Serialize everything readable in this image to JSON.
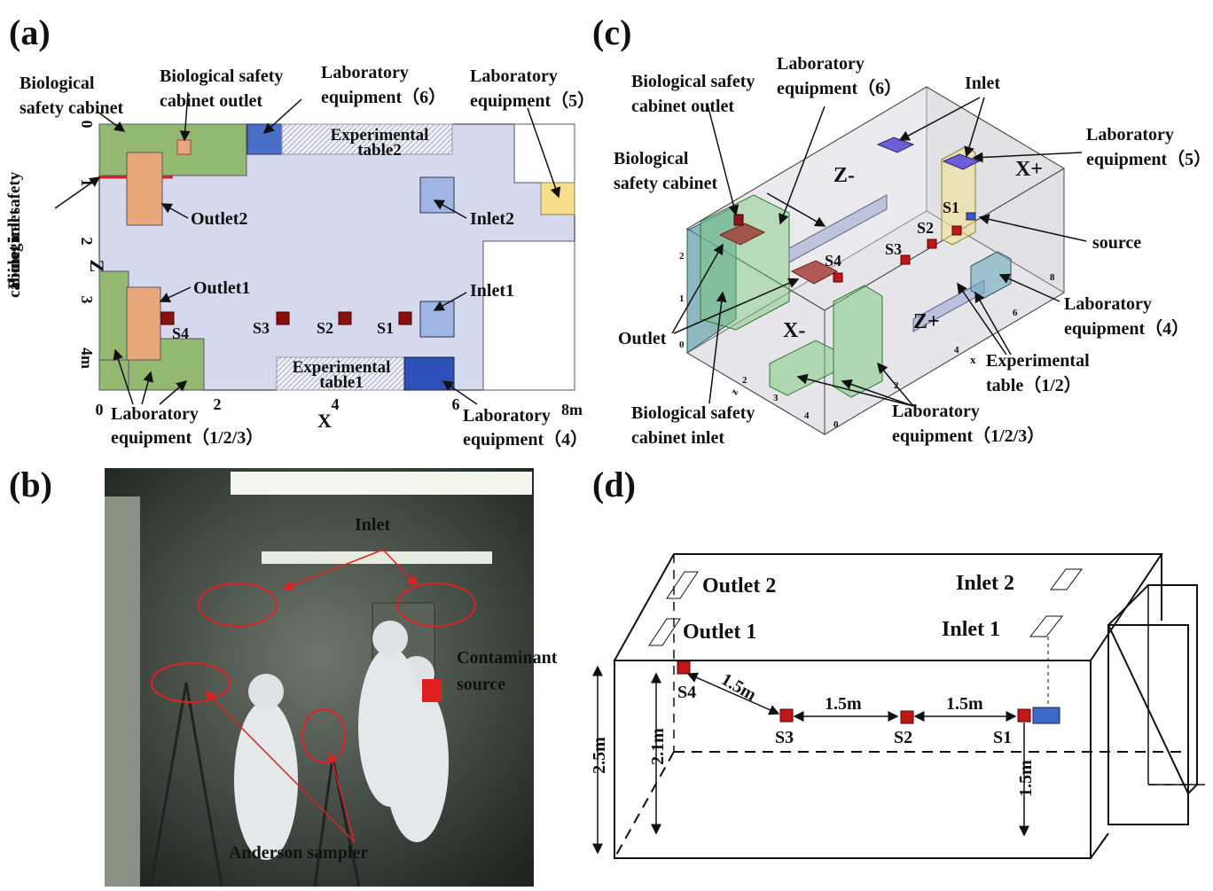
{
  "a": {
    "label": "(a)",
    "bsc": [
      "Biological",
      "safety cabinet"
    ],
    "bsc_outlet": [
      "Biological safety",
      "cabinet outlet"
    ],
    "eq6": [
      "Laboratory",
      "equipment（6）"
    ],
    "eq5": [
      "Laboratory",
      "equipment（5）"
    ],
    "table2": [
      "Experimental",
      "table2"
    ],
    "bsc_inlet": [
      "Biological safety",
      "cabinet inlet"
    ],
    "outlet2": "Outlet2",
    "inlet2": "Inlet2",
    "outlet1": "Outlet1",
    "inlet1": "Inlet1",
    "samplers": [
      "S4",
      "S3",
      "S2",
      "S1"
    ],
    "table1": [
      "Experimental",
      "table1"
    ],
    "z_ticks": [
      "0",
      "1",
      "2",
      "3",
      "4m"
    ],
    "z_label": "Z",
    "x_ticks": [
      "0",
      "2",
      "4",
      "6",
      "8m"
    ],
    "x_label": "X",
    "eq123": [
      "Laboratory",
      "equipment（1/2/3）"
    ],
    "eq4": [
      "Laboratory",
      "equipment（4）"
    ]
  },
  "b": {
    "label": "(b)",
    "inlet": "Inlet",
    "source": [
      "Contaminant",
      "source"
    ],
    "sampler": "Anderson sampler"
  },
  "c": {
    "label": "(c)",
    "bsc_outlet": [
      "Biological safety",
      "cabinet outlet"
    ],
    "eq6": [
      "Laboratory",
      "equipment（6）"
    ],
    "inlet": "Inlet",
    "eq5": [
      "Laboratory",
      "equipment（5）"
    ],
    "bsc": [
      "Biological",
      "safety cabinet"
    ],
    "z_minus": "Z-",
    "x_plus": "X+",
    "samplers": [
      "S1",
      "S2",
      "S3",
      "S4"
    ],
    "source": "source",
    "eq4": [
      "Laboratory",
      "equipment（4）"
    ],
    "outlet": "Outlet",
    "x_minus": "X-",
    "z_plus": "Z+",
    "table": [
      "Experimental",
      "table（1/2）"
    ],
    "bsc_inlet": [
      "Biological safety",
      "cabinet inlet"
    ],
    "eq123": [
      "Laboratory",
      "equipment（1/2/3）"
    ],
    "y_ticks": [
      "2",
      "1",
      "0"
    ],
    "z_ticks": [
      "2",
      "3",
      "4"
    ],
    "z_label": "z",
    "x_ticks": [
      "0",
      "2",
      "4",
      "6",
      "8"
    ],
    "x_label": "x"
  },
  "d": {
    "label": "(d)",
    "outlet2": "Outlet 2",
    "outlet1": "Outlet 1",
    "inlet2": "Inlet 2",
    "inlet1": "Inlet 1",
    "samplers": [
      "S4",
      "S3",
      "S2",
      "S1"
    ],
    "spacing": [
      "1.5m",
      "1.5m",
      "1.5m"
    ],
    "height": "2.5m",
    "s4_height": "2.1m",
    "s1_height": "1.5m"
  }
}
